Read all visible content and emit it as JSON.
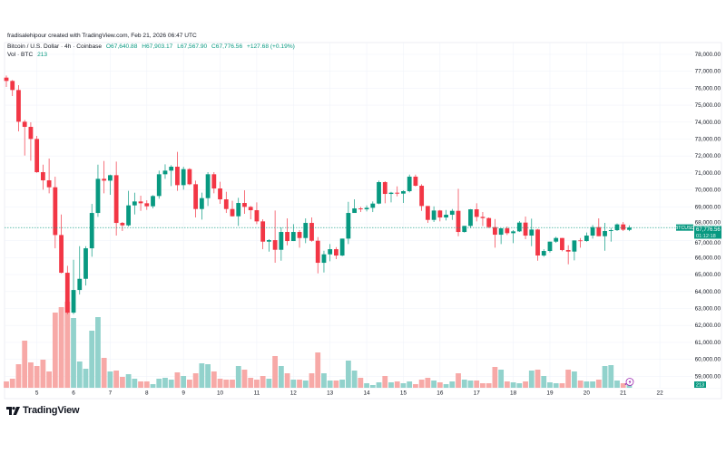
{
  "header": {
    "attribution": "fradisalehipour created with TradingView.com, Feb 21, 2026 06:47 UTC",
    "symbol": "Bitcoin / U.S. Dollar · 4h · Coinbase",
    "open": "O67,640.88",
    "high": "H67,903.17",
    "low": "L67,567.90",
    "close": "C67,776.56",
    "change": "+127.68 (+0.19%)",
    "volume_label": "Vol · BTC",
    "volume_value": "213"
  },
  "price_tag": {
    "symbol": "BTCUSD",
    "price": "67,776.56",
    "countdown": "01:12:18"
  },
  "volume_tag": "213",
  "logo": "TradingView",
  "colors": {
    "up": "#089981",
    "down": "#f23645",
    "up_vol": "#92d2cc",
    "down_vol": "#f7a9a7",
    "grid": "#f0f3fa",
    "alert": "#9c27b0"
  },
  "chart_data": {
    "type": "candlestick",
    "interval": "4h",
    "ylim": [
      58500,
      78500
    ],
    "price_ticks": [
      "78,000.00",
      "77,000.00",
      "76,000.00",
      "75,000.00",
      "74,000.00",
      "73,000.00",
      "72,000.00",
      "71,000.00",
      "70,000.00",
      "69,000.00",
      "68,000.00",
      "67,000.00",
      "66,000.00",
      "65,000.00",
      "64,000.00",
      "63,000.00",
      "62,000.00",
      "61,000.00",
      "60,000.00",
      "59,000.00"
    ],
    "date_ticks": [
      "5",
      "6",
      "7",
      "8",
      "9",
      "10",
      "11",
      "12",
      "13",
      "14",
      "15",
      "16",
      "17",
      "18",
      "19",
      "20",
      "21",
      "22"
    ],
    "grid": true,
    "candles_ohlc": [
      [
        76627,
        76752,
        76074,
        76431
      ],
      [
        76431,
        76484,
        75539,
        75896
      ],
      [
        75896,
        76181,
        73453,
        74024
      ],
      [
        74024,
        74131,
        72027,
        73721
      ],
      [
        73721,
        73988,
        71724,
        73007
      ],
      [
        73007,
        73186,
        71010,
        71046
      ],
      [
        71046,
        71492,
        70012,
        70565
      ],
      [
        70565,
        71848,
        69798,
        70155
      ],
      [
        70155,
        70779,
        66553,
        67337
      ],
      [
        67337,
        68550,
        65073,
        65109
      ],
      [
        65109,
        65519,
        62666,
        62755
      ],
      [
        62755,
        65875,
        62666,
        64092
      ],
      [
        64092,
        66678,
        63825,
        64752
      ],
      [
        64752,
        66678,
        64360,
        66553
      ],
      [
        66553,
        69174,
        66054,
        68639
      ],
      [
        68639,
        71492,
        68407,
        70654
      ],
      [
        70654,
        71706,
        69798,
        70547
      ],
      [
        70547,
        70904,
        69709,
        70868
      ],
      [
        70868,
        71670,
        67302,
        68051
      ],
      [
        68051,
        68104,
        67569,
        67908
      ],
      [
        67908,
        69942,
        67838,
        69086
      ],
      [
        69086,
        69835,
        68551,
        69318
      ],
      [
        69318,
        69657,
        68765,
        69211
      ],
      [
        69211,
        69389,
        68819,
        69033
      ],
      [
        69033,
        69692,
        68908,
        69639
      ],
      [
        69639,
        71137,
        69478,
        70923
      ],
      [
        70923,
        71511,
        70655,
        71137
      ],
      [
        71137,
        71458,
        70227,
        71368
      ],
      [
        71368,
        72242,
        69942,
        70281
      ],
      [
        70281,
        71368,
        70013,
        71226
      ],
      [
        71226,
        71279,
        70281,
        70334
      ],
      [
        70334,
        70548,
        68373,
        68872
      ],
      [
        68872,
        69835,
        68248,
        69514
      ],
      [
        69514,
        71048,
        69050,
        70923
      ],
      [
        70923,
        71048,
        69799,
        70085
      ],
      [
        70085,
        70477,
        69175,
        69443
      ],
      [
        69443,
        69889,
        68640,
        68872
      ],
      [
        68872,
        69354,
        68426,
        68444
      ],
      [
        68444,
        69532,
        67874,
        69229
      ],
      [
        69229,
        69978,
        68587,
        68997
      ],
      [
        68997,
        69051,
        68266,
        68801
      ],
      [
        68801,
        69264,
        67981,
        68141
      ],
      [
        68141,
        68266,
        66500,
        66946
      ],
      [
        66946,
        67089,
        66358,
        67035
      ],
      [
        67035,
        68783,
        65698,
        66465
      ],
      [
        66465,
        67784,
        65823,
        67517
      ],
      [
        67517,
        68319,
        66732,
        66982
      ],
      [
        66982,
        67980,
        66982,
        67517
      ],
      [
        67517,
        67624,
        66590,
        67160
      ],
      [
        67160,
        68319,
        66857,
        68052
      ],
      [
        68052,
        68373,
        66946,
        67000
      ],
      [
        67000,
        67214,
        65074,
        65698
      ],
      [
        65698,
        66411,
        65128,
        66197
      ],
      [
        66197,
        66804,
        65787,
        66500
      ],
      [
        66500,
        66625,
        65912,
        66126
      ],
      [
        66126,
        67125,
        66090,
        67125
      ],
      [
        67125,
        69300,
        66804,
        68640
      ],
      [
        68640,
        69442,
        68640,
        68907
      ],
      [
        68907,
        68997,
        68693,
        68854
      ],
      [
        68854,
        69086,
        68729,
        68943
      ],
      [
        68943,
        69318,
        68693,
        69193
      ],
      [
        69193,
        70548,
        69157,
        70459
      ],
      [
        70459,
        70512,
        69211,
        69763
      ],
      [
        69763,
        69888,
        69264,
        69835
      ],
      [
        69835,
        70209,
        69621,
        69781
      ],
      [
        69781,
        69977,
        69228,
        69924
      ],
      [
        69924,
        70904,
        69853,
        70780
      ],
      [
        70780,
        70904,
        70209,
        70245
      ],
      [
        70245,
        70334,
        68765,
        69050
      ],
      [
        69050,
        69050,
        68052,
        68230
      ],
      [
        68230,
        69032,
        68105,
        68783
      ],
      [
        68783,
        68818,
        68141,
        68373
      ],
      [
        68373,
        68818,
        68195,
        68533
      ],
      [
        68533,
        68872,
        68230,
        68765
      ],
      [
        68765,
        70066,
        67267,
        67517
      ],
      [
        67517,
        67874,
        67481,
        67874
      ],
      [
        67874,
        68872,
        67749,
        68854
      ],
      [
        68854,
        69211,
        68141,
        68408
      ],
      [
        68408,
        68693,
        67873,
        68337
      ],
      [
        68337,
        68373,
        67749,
        67802
      ],
      [
        67802,
        68284,
        66590,
        67356
      ],
      [
        67356,
        67731,
        66804,
        67731
      ],
      [
        67731,
        67838,
        67339,
        67446
      ],
      [
        67446,
        67624,
        66857,
        67552
      ],
      [
        67552,
        68159,
        67517,
        68070
      ],
      [
        68070,
        68427,
        67089,
        67303
      ],
      [
        67303,
        68302,
        66679,
        67660
      ],
      [
        67660,
        67696,
        65824,
        66127
      ],
      [
        66127,
        66501,
        66055,
        66394
      ],
      [
        66394,
        66947,
        66305,
        66947
      ],
      [
        66947,
        67232,
        66875,
        67161
      ],
      [
        67161,
        67161,
        66376,
        66448
      ],
      [
        66448,
        66733,
        65609,
        66359
      ],
      [
        66359,
        67018,
        65841,
        67018
      ],
      [
        67018,
        67161,
        66590,
        66982
      ],
      [
        66982,
        67482,
        66947,
        67303
      ],
      [
        67303,
        67927,
        67125,
        67803
      ],
      [
        67803,
        68320,
        67268,
        67268
      ],
      [
        67268,
        68052,
        66412,
        67571
      ],
      [
        67571,
        67749,
        66947,
        67624
      ],
      [
        67624,
        68017,
        67571,
        67963
      ],
      [
        67963,
        68106,
        67571,
        67649
      ],
      [
        67640.88,
        67903.17,
        67567.9,
        67776.56
      ]
    ],
    "volume": [
      350,
      500,
      1300,
      2600,
      1400,
      1200,
      1550,
      900,
      4150,
      4450,
      4750,
      3850,
      1450,
      1050,
      3150,
      3900,
      1650,
      900,
      950,
      600,
      750,
      500,
      350,
      350,
      200,
      500,
      550,
      450,
      850,
      650,
      450,
      800,
      1350,
      1300,
      900,
      500,
      450,
      450,
      1200,
      1000,
      550,
      450,
      650,
      500,
      1750,
      1200,
      800,
      450,
      450,
      400,
      800,
      1950,
      800,
      400,
      400,
      450,
      1500,
      950,
      550,
      250,
      150,
      300,
      650,
      300,
      350,
      250,
      350,
      200,
      450,
      550,
      400,
      300,
      200,
      350,
      800,
      450,
      400,
      400,
      250,
      250,
      1150,
      1000,
      350,
      300,
      250,
      350,
      950,
      1000,
      650,
      300,
      250,
      250,
      1000,
      900,
      400,
      350,
      350,
      450,
      1200,
      1250,
      400,
      250,
      213
    ]
  }
}
